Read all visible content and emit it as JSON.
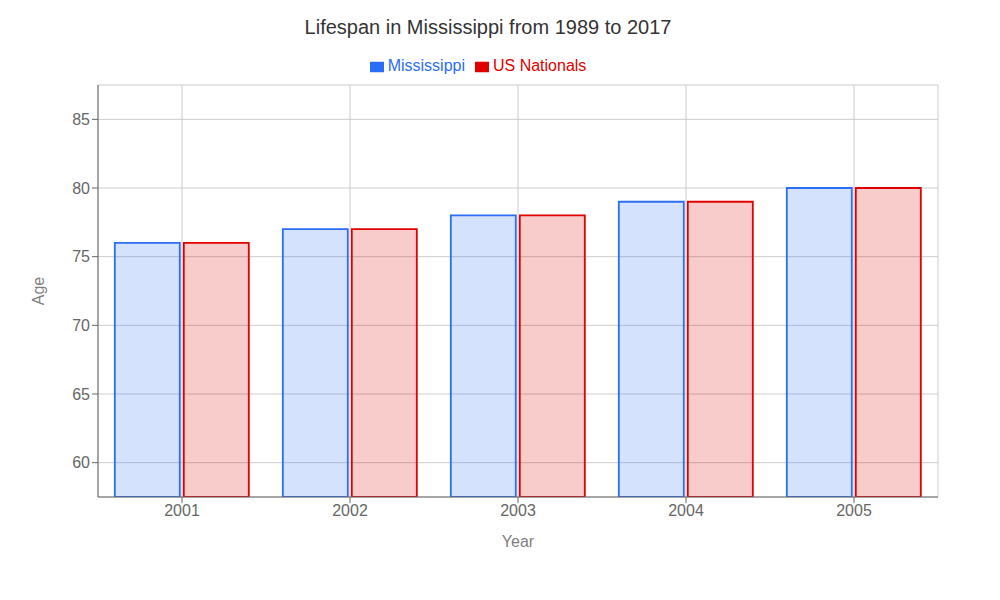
{
  "chart_data": {
    "type": "bar",
    "title": "Lifespan in Mississippi from 1989 to 2017",
    "x_label": "Year",
    "y_label": "Age",
    "categories": [
      "2001",
      "2002",
      "2003",
      "2004",
      "2005"
    ],
    "series": [
      {
        "name": "Mississippi",
        "color": "#2a6ef5",
        "values": [
          76,
          77,
          78,
          79,
          80
        ]
      },
      {
        "name": "US Nationals",
        "color": "#e00000",
        "values": [
          76,
          77,
          78,
          79,
          80
        ]
      }
    ],
    "ylim": [
      57.5,
      87.5
    ],
    "yticks": [
      60,
      65,
      70,
      75,
      80,
      85
    ],
    "grid": true,
    "legend": "top"
  }
}
